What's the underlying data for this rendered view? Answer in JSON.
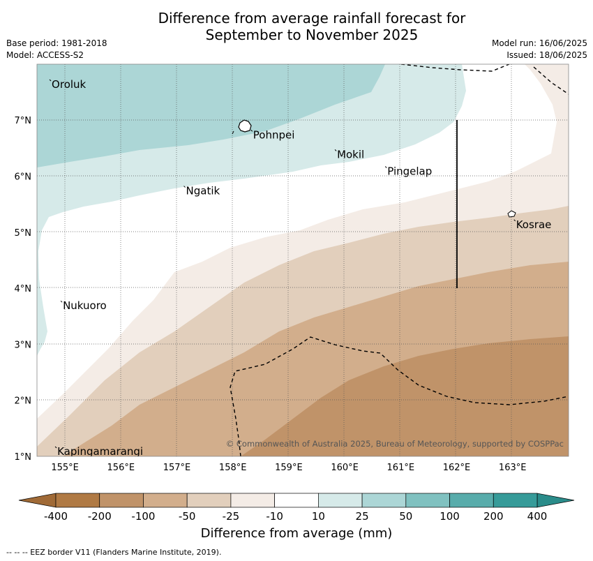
{
  "title_line1": "Difference from average rainfall forecast for",
  "title_line2": "September to November 2025",
  "meta": {
    "base_period": "Base period: 1981-2018",
    "model": "Model: ACCESS-S2",
    "model_run": "Model run: 16/06/2025",
    "issued": "Issued: 18/06/2025"
  },
  "axes": {
    "lon_ticks": [
      "155°E",
      "156°E",
      "157°E",
      "158°E",
      "159°E",
      "160°E",
      "161°E",
      "162°E",
      "163°E"
    ],
    "lat_ticks": [
      "1°N",
      "2°N",
      "3°N",
      "4°N",
      "5°N",
      "6°N",
      "7°N"
    ]
  },
  "places": [
    {
      "name": "Oroluk",
      "lon": 154.75,
      "lat": 7.65
    },
    {
      "name": "Pohnpei",
      "lon": 158.35,
      "lat": 6.75
    },
    {
      "name": "Mokil",
      "lon": 159.85,
      "lat": 6.4
    },
    {
      "name": "Pingelap",
      "lon": 160.75,
      "lat": 6.1
    },
    {
      "name": "Ngatik",
      "lon": 157.15,
      "lat": 5.75
    },
    {
      "name": "Kosrae",
      "lon": 163.05,
      "lat": 5.15
    },
    {
      "name": "Nukuoro",
      "lon": 154.95,
      "lat": 3.7
    },
    {
      "name": "Kapingamarangi",
      "lon": 154.85,
      "lat": 1.1
    }
  ],
  "credit": "© Commonwealth of Australia 2025, Bureau of Meteorology, supported by COSPPac",
  "colorbar": {
    "ticks": [
      "-400",
      "-200",
      "-100",
      "-50",
      "-25",
      "-10",
      "10",
      "25",
      "50",
      "100",
      "200",
      "400"
    ],
    "colors": [
      "#b07a44",
      "#c09369",
      "#d2ae8c",
      "#e2cfbc",
      "#f4ece6",
      "#ffffff",
      "#d6eae9",
      "#acd6d6",
      "#80c1c0",
      "#58acab",
      "#369b99"
    ],
    "title": "Difference from average (mm)"
  },
  "footnote": "--  --  -- EEZ border V11 (Flanders Marine Institute, 2019)."
}
